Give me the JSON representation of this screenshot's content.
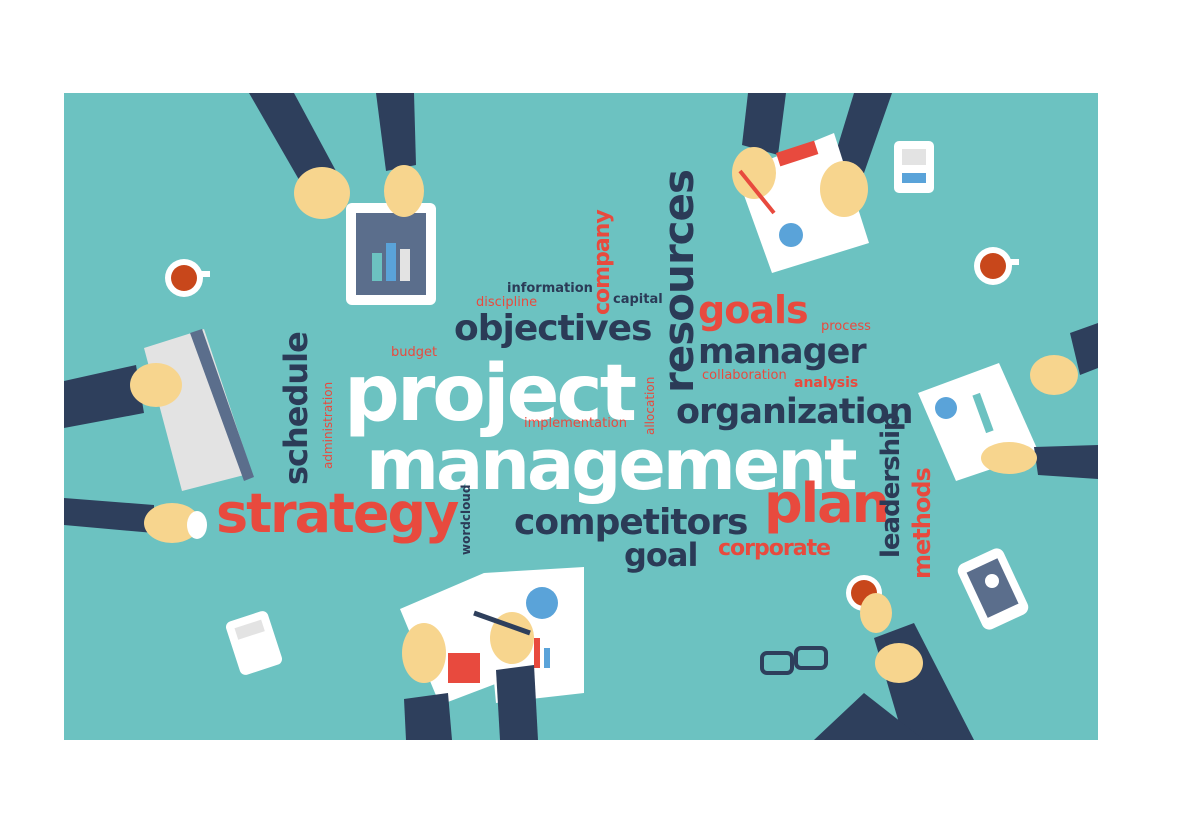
{
  "words": {
    "project": "project",
    "management": "management",
    "strategy": "strategy",
    "plan": "plan",
    "competitors": "competitors",
    "goal": "goal",
    "corporate": "corporate",
    "organization": "organization",
    "manager": "manager",
    "goals": "goals",
    "objectives": "objectives",
    "resources": "resources",
    "company": "company",
    "schedule": "schedule",
    "leadership": "leadership",
    "methods": "methods",
    "information": "information",
    "discipline": "discipline",
    "capital": "capital",
    "process": "process",
    "collaboration": "collaboration",
    "analysis": "analysis",
    "budget": "budget",
    "implementation": "implementation",
    "allocation": "allocation",
    "administration": "administration",
    "wordcloud": "wordcloud"
  },
  "colors": {
    "background": "#6cc2c1",
    "dark_text": "#2b3b57",
    "red_text": "#e84a3e",
    "white_text": "#ffffff",
    "sleeve": "#2e3f5c",
    "skin": "#f7d58e"
  },
  "illustrations": [
    "tablet-hands",
    "document-hands",
    "coffee-cup",
    "laptop-hands",
    "mouse-hand",
    "calculator",
    "chart-papers-hands",
    "glasses",
    "smartphone",
    "coffee-hand",
    "report-hands"
  ]
}
